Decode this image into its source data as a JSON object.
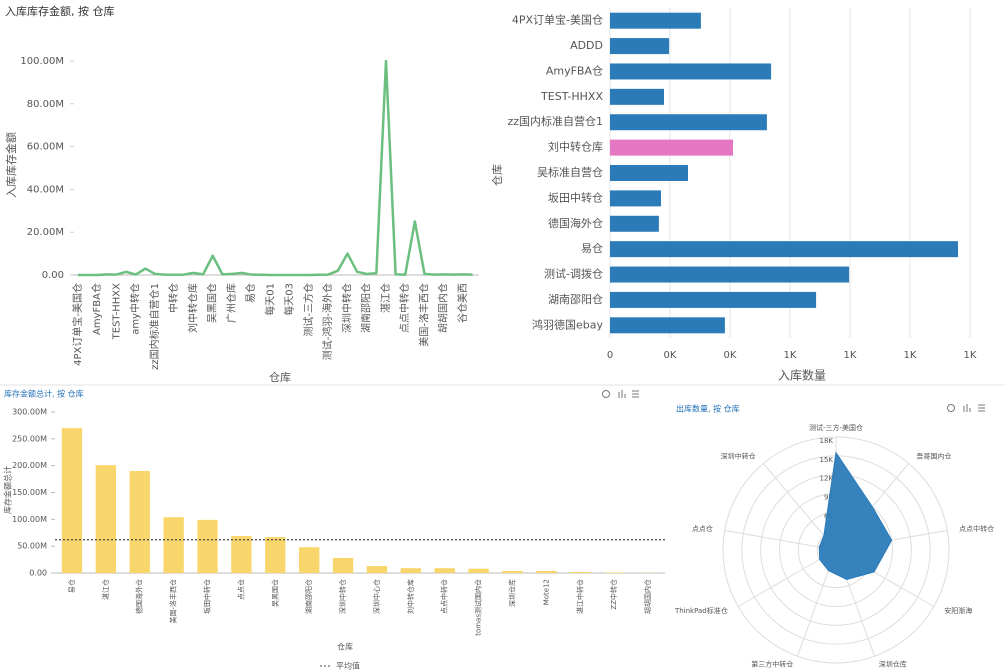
{
  "chart_data": [
    {
      "type": "line",
      "title": "入库库存金额, 按 仓库",
      "y_label": "入库库存金额",
      "x_label": "仓库",
      "color": "#6bbf7f",
      "categories": [
        "4PX订单宝-美国仓",
        null,
        "AmyFBA仓",
        null,
        "TEST-HHXX",
        null,
        "amy中转仓",
        null,
        "zz国内标准自营仓1",
        null,
        "中转仓",
        null,
        "刘中转仓库",
        null,
        "吴黑国仓",
        null,
        "广州仓库",
        null,
        "易仓",
        null,
        "每天01",
        null,
        "每天03",
        null,
        "测试-三方仓",
        null,
        "测试-鸿羽-海外仓",
        null,
        "深圳中转仓",
        null,
        "湖南邵阳仓",
        null,
        "湛江仓",
        null,
        "点点中转仓",
        null,
        "美国-洛丰西仓",
        null,
        "胡胡国内仓",
        null,
        "谷仓美西",
        null
      ],
      "values": [
        0,
        0,
        0,
        300000,
        200000,
        1500000,
        200000,
        3000000,
        500000,
        200000,
        100000,
        200000,
        1000000,
        300000,
        9000000,
        300000,
        500000,
        1000000,
        200000,
        100000,
        0,
        0,
        0,
        0,
        0,
        100000,
        200000,
        2000000,
        10000000,
        1500000,
        500000,
        800000,
        100000000,
        300000,
        200000,
        25000000,
        500000,
        200000,
        300000,
        200000,
        300000,
        200000
      ],
      "ylim": [
        0,
        100000000
      ],
      "yticks": [
        {
          "value": 0,
          "label": "0.00"
        },
        {
          "value": 20000000,
          "label": "20.00M"
        },
        {
          "value": 40000000,
          "label": "40.00M"
        },
        {
          "value": 60000000,
          "label": "60.00M"
        },
        {
          "value": 80000000,
          "label": "80.00M"
        },
        {
          "value": 100000000,
          "label": "100.00M"
        }
      ]
    },
    {
      "type": "hbar",
      "y_label": "仓库",
      "x_label": "入库数量",
      "categories": [
        "4PX订单宝-美国仓",
        "ADDD",
        "AmyFBA仓",
        "TEST-HHXX",
        "zz国内标准自营仓1",
        "刘中转仓库",
        "吴标准自营仓",
        "坂田中转仓",
        "德国海外仓",
        "易仓",
        "测试-调拨仓",
        "湖南邵阳仓",
        "鸿羽德国ebay"
      ],
      "values": [
        303,
        197,
        537,
        180,
        523,
        410,
        260,
        170,
        163,
        1160,
        797,
        687,
        383
      ],
      "colors": [
        "#2b7bb9",
        "#2b7bb9",
        "#2b7bb9",
        "#2b7bb9",
        "#2b7bb9",
        "#e377c2",
        "#2b7bb9",
        "#2b7bb9",
        "#2b7bb9",
        "#2b7bb9",
        "#2b7bb9",
        "#2b7bb9",
        "#2b7bb9"
      ],
      "xlim": [
        0,
        1300
      ],
      "xticks": [
        0,
        {
          "value": 200,
          "label": "0K"
        },
        {
          "value": 400,
          "label": "0K"
        },
        {
          "value": 600,
          "label": "1K"
        },
        {
          "value": 800,
          "label": "1K"
        },
        {
          "value": 1000,
          "label": "1K"
        },
        {
          "value": 1200,
          "label": "1K"
        }
      ],
      "grid": true
    },
    {
      "type": "bar",
      "title": "库存金额总计, 按 仓库",
      "y_label": "库存金额总计",
      "x_label": "仓库",
      "color": "#f9d66b",
      "categories": [
        "易仓",
        "湛江仓",
        "德国海外仓",
        "美国-洛丰西仓",
        "坂田中转仓",
        "点点仓",
        "吴黑国仓",
        "湖南邵阳仓",
        "深圳中转仓",
        "深圳中心仓",
        "刘中转仓库",
        "点点中转仓",
        "tomas测试国内仓",
        "深圳仓库",
        "Mote12",
        "湛江中转仓",
        "ZZ中转仓",
        "胡胡国内仓"
      ],
      "values": [
        270000000,
        201000000,
        190000000,
        104000000,
        99000000,
        69000000,
        67000000,
        48000000,
        28000000,
        13000000,
        9000000,
        9000000,
        8000000,
        4000000,
        4000000,
        2000000,
        1000000,
        500000
      ],
      "average": 62000000,
      "average_label": "平均值",
      "ylim": [
        0,
        300000000
      ],
      "yticks": [
        {
          "value": 0,
          "label": "0.00"
        },
        {
          "value": 50000000,
          "label": "50.00M"
        },
        {
          "value": 100000000,
          "label": "100.00M"
        },
        {
          "value": 150000000,
          "label": "150.00M"
        },
        {
          "value": 200000000,
          "label": "200.00M"
        },
        {
          "value": 250000000,
          "label": "250.00M"
        },
        {
          "value": 300000000,
          "label": "300.00M"
        }
      ]
    },
    {
      "type": "radar",
      "title": "出库数量, 按 仓库",
      "color": "#2b7bb9",
      "indicators": [
        "测试-三方-美国仓",
        "吾哥国内仓",
        "点点中转仓",
        "安阳渐海",
        "深圳仓库",
        "第三方中转仓",
        "ThinkPad标准仓",
        "点点仓",
        "深圳中转仓"
      ],
      "values": [
        15500,
        9000,
        9000,
        7000,
        5000,
        3500,
        3000,
        2700,
        3000
      ],
      "rlim": [
        0,
        18000
      ],
      "rticks": [
        0,
        {
          "value": 3000,
          "label": "3K"
        },
        {
          "value": 6000,
          "label": "6K"
        },
        {
          "value": 9000,
          "label": "9K"
        },
        {
          "value": 12000,
          "label": "12K"
        },
        {
          "value": 15000,
          "label": "15K"
        },
        {
          "value": 18000,
          "label": "18K"
        }
      ]
    }
  ]
}
